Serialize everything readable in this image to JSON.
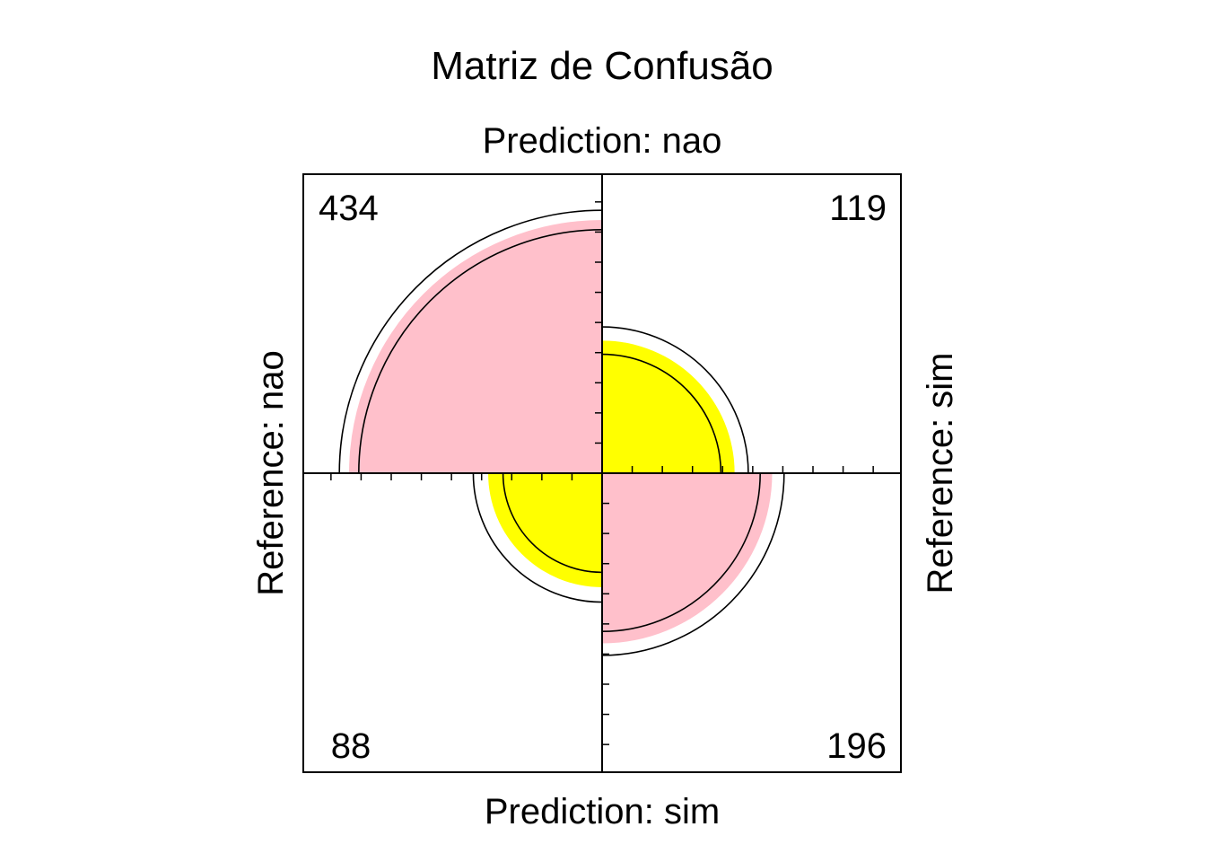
{
  "chart_data": {
    "type": "fourfold",
    "title": "Matriz de Confusão",
    "labels": {
      "top": "Prediction: nao",
      "bottom": "Prediction: sim",
      "left": "Reference: nao",
      "right": "Reference: sim"
    },
    "cells": [
      {
        "name": "nao-nao",
        "quadrant": "top-left",
        "count": "434",
        "value": 434,
        "fill": "#FFC0CB"
      },
      {
        "name": "nao-sim",
        "quadrant": "top-right",
        "count": "119",
        "value": 119,
        "fill": "#FFFF00"
      },
      {
        "name": "sim-nao",
        "quadrant": "bottom-left",
        "count": "88",
        "value": 88,
        "fill": "#FFFF00"
      },
      {
        "name": "sim-sim",
        "quadrant": "bottom-right",
        "count": "196",
        "value": 196,
        "fill": "#FFC0CB"
      }
    ],
    "confidence_rings": true,
    "ticks": true
  }
}
